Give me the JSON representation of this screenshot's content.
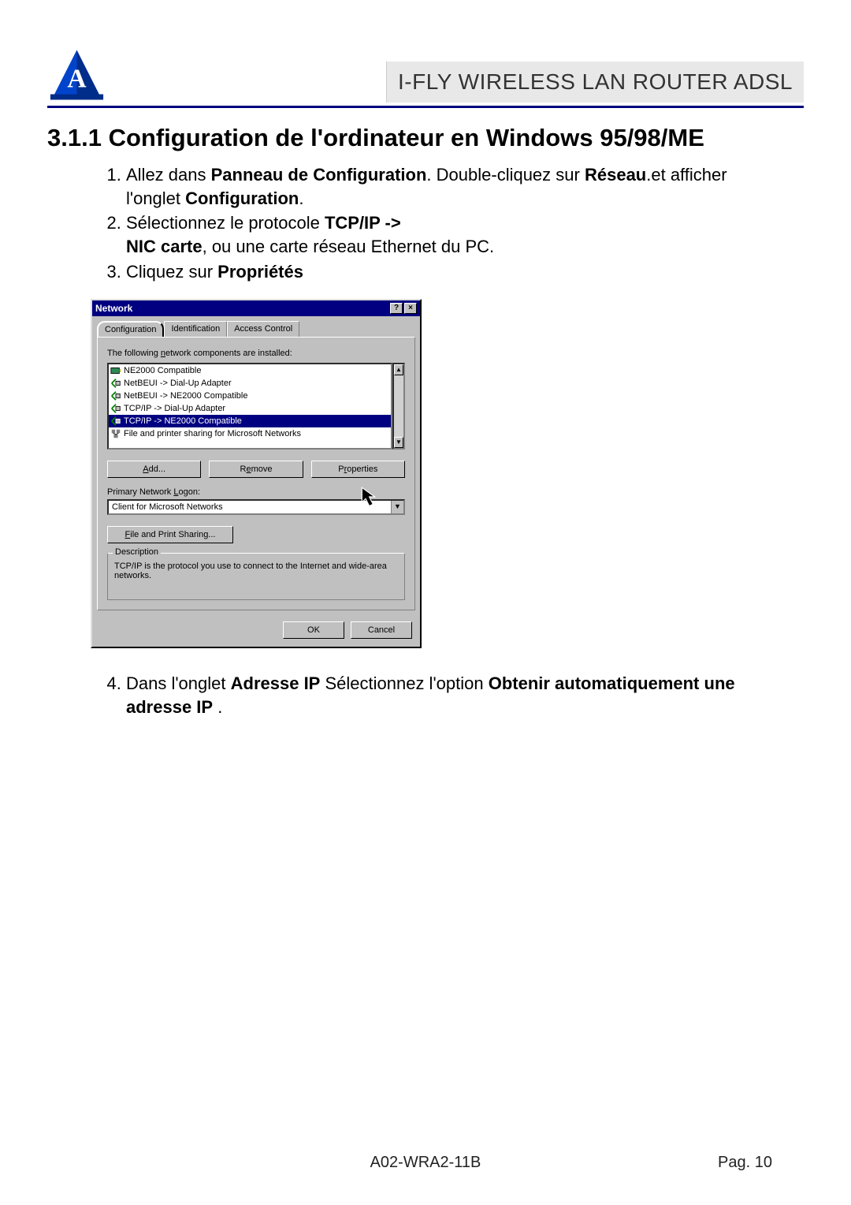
{
  "header": {
    "product_title": "I-FLY WIRELESS LAN ROUTER ADSL"
  },
  "section": {
    "number": "3.1.1",
    "title": "Configuration de l'ordinateur en Windows 95/98/ME"
  },
  "steps_before": [
    {
      "n": "1.",
      "html": "Allez dans  <b>Panneau de Configuration</b>. Double-cliquez sur <b>Réseau</b>.et afficher l'onglet <b>Configuration</b>."
    },
    {
      "n": "2.",
      "html": "Sélectionnez le protocole <b>TCP/IP -></b><br><b>NIC carte</b>, ou une carte réseau Ethernet du  PC."
    },
    {
      "n": "3.",
      "html": "Cliquez sur <b>Propriétés</b>"
    }
  ],
  "dialog": {
    "title": "Network",
    "help_glyph": "?",
    "close_glyph": "×",
    "tabs": [
      "Configuration",
      "Identification",
      "Access Control"
    ],
    "active_tab_index": 0,
    "panel_label_prefix": "The following ",
    "panel_label_underlined": "n",
    "panel_label_suffix": "etwork components are installed:",
    "list": [
      {
        "icon": "adapter",
        "label": "NE2000 Compatible",
        "selected": false
      },
      {
        "icon": "protocol",
        "label": "NetBEUI -> Dial-Up Adapter",
        "selected": false
      },
      {
        "icon": "protocol",
        "label": "NetBEUI -> NE2000 Compatible",
        "selected": false
      },
      {
        "icon": "protocol",
        "label": "TCP/IP -> Dial-Up Adapter",
        "selected": false
      },
      {
        "icon": "protocol",
        "label": "TCP/IP -> NE2000 Compatible",
        "selected": true
      },
      {
        "icon": "service",
        "label": "File and printer sharing for Microsoft Networks",
        "selected": false
      }
    ],
    "buttons": {
      "add_u": "A",
      "add_rest": "dd...",
      "remove_pre": "R",
      "remove_u": "e",
      "remove_rest": "move",
      "props_pre": "P",
      "props_u": "r",
      "props_rest": "operties"
    },
    "logon_label_pre": "Primary Network ",
    "logon_label_u": "L",
    "logon_label_rest": "ogon:",
    "logon_value": "Client for Microsoft Networks",
    "fps_u": "F",
    "fps_rest": "ile and Print Sharing...",
    "desc_legend": "Description",
    "desc_text": "TCP/IP is the protocol you use to connect to the Internet and wide-area networks.",
    "ok": "OK",
    "cancel": "Cancel"
  },
  "steps_after": [
    {
      "n": "4.",
      "html": "Dans l'onglet <b>Adresse IP</b> Sélectionnez l'option  <b>Obtenir automatiquement une adresse IP</b> ."
    }
  ],
  "footer": {
    "doc_code": "A02-WRA2-11B",
    "page": "Pag. 10"
  },
  "colors": {
    "rule": "#000080",
    "titlebar": "#000080",
    "dialog_bg": "#c0c0c0",
    "selection": "#000080"
  }
}
